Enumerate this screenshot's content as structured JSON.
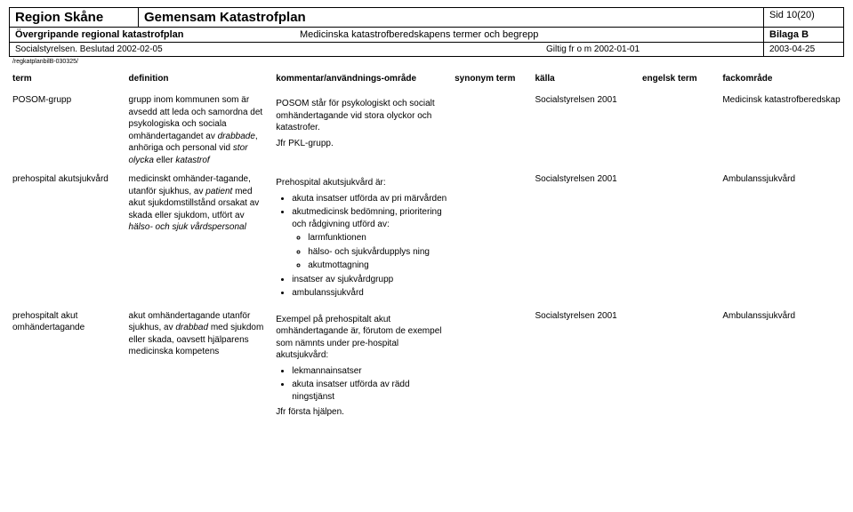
{
  "header": {
    "region": "Region Skåne",
    "title": "Gemensam Katastrofplan",
    "page": "Sid 10(20)",
    "subtitle_left": "Övergripande regional katastrofplan",
    "subtitle_right": "Medicinska katastrofberedskapens termer och begrepp",
    "bilaga": "Bilaga B",
    "decided": "Socialstyrelsen. Beslutad 2002-02-05",
    "valid": "Giltig fr o m 2002-01-01",
    "rev_date": "2003-04-25",
    "path": "/regkatplanbilB-030325/"
  },
  "columns": {
    "term": "term",
    "definition": "definition",
    "kommentar": "kommentar/användnings-område",
    "synonym": "synonym term",
    "kalla": "källa",
    "engelsk": "engelsk term",
    "fack": "fackområde"
  },
  "rows": [
    {
      "term": "POSOM-grupp",
      "definition": "grupp inom kommunen som är avsedd att leda och samordna det psykologiska och sociala omhändertagandet av <em>drabbade</em>, anhöriga och personal vid <em>stor olycka</em> eller <em>katastrof</em>",
      "kommentar": "<p>POSOM står för psykologiskt och socialt omhändertagande vid stora olyckor och katastrofer.</p><p>Jfr PKL-grupp.</p>",
      "synonym": "",
      "kalla": "Socialstyrelsen 2001",
      "engelsk": "",
      "fack": "Medicinsk katastrofberedskap"
    },
    {
      "term": "prehospital akutsjukvård",
      "definition": "medicinskt omhänder-tagande, utanför sjukhus, av <em>patient</em> med akut sjukdomstillstånd orsakat av skada eller sjukdom, utfört av <em>hälso- och sjuk vårdspersonal</em>",
      "kommentar": "<p>Prehospital akutsjukvård är:</p><ul class=\"b1\"><li>akuta insatser utförda av pri märvården</li><li>akutmedicinsk bedömning, prioritering och rådgivning utförd av:<ul class=\"b2\"><li>larmfunktionen</li><li>hälso- och sjukvårdupplys ning</li><li>akutmottagning</li></ul></li><li>insatser av sjukvårdgrupp</li><li>ambulanssjukvård</li></ul>",
      "synonym": "",
      "kalla": "Socialstyrelsen 2001",
      "engelsk": "",
      "fack": "Ambulanssjukvård"
    },
    {
      "term": "prehospitalt akut omhändertagande",
      "definition": "akut omhändertagande utanför sjukhus, av <em>drabbad</em> med sjukdom eller skada, oavsett hjälparens medicinska kompetens",
      "kommentar": "<p>Exempel på prehospitalt akut omhändertagande är, förutom de exempel som nämnts under pre-hospital akutsjukvård:</p><ul class=\"b1\"><li>lekmannainsatser</li><li>akuta insatser utförda av rädd ningstjänst</li></ul><p>Jfr första hjälpen.</p>",
      "synonym": "",
      "kalla": "Socialstyrelsen 2001",
      "engelsk": "",
      "fack": "Ambulanssjukvård"
    }
  ]
}
